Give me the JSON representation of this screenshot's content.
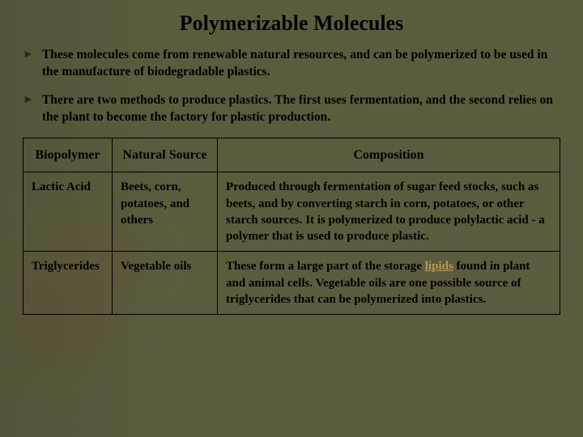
{
  "title": "Polymerizable Molecules",
  "bullets": [
    "These molecules come from renewable natural resources, and can be polymerized to be used in the manufacture of biodegradable plastics.",
    "There are two methods to produce plastics. The first uses fermentation, and the second relies on the plant to become the factory for plastic production."
  ],
  "table": {
    "headers": [
      "Biopolymer",
      "Natural Source",
      "Composition"
    ],
    "rows": [
      {
        "biopolymer": "Lactic Acid",
        "source": "Beets, corn, potatoes, and others",
        "composition": "Produced through fermentation of sugar feed stocks, such as beets, and by converting starch in corn, potatoes, or other starch sources. It is polymerized to produce polylactic acid - a polymer that is used to produce plastic."
      },
      {
        "biopolymer": "Triglycerides",
        "source": "Vegetable oils",
        "composition_pre": "These form a large part of the storage ",
        "composition_link": "lipids",
        "composition_post": " found in plant and animal cells. Vegetable oils are one possible source of triglycerides that can be polymerized into plastics."
      }
    ]
  },
  "colors": {
    "background": "#5b5c3e",
    "text": "#000000",
    "border": "#000000",
    "link": "#b89850"
  }
}
